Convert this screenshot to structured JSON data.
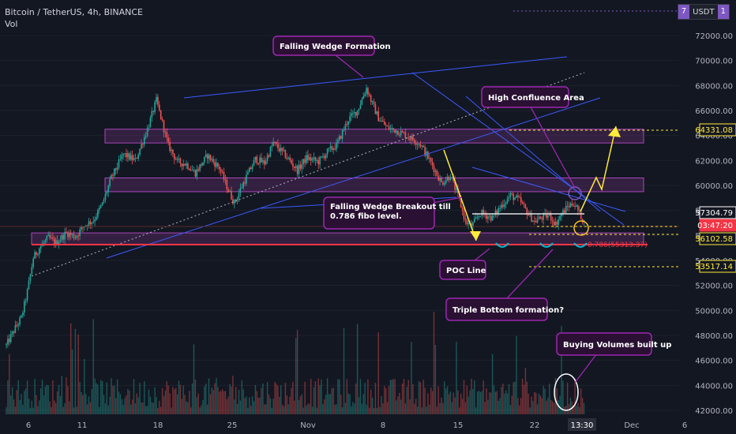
{
  "header": {
    "symbol_line": "Bitcoin / TetherUS, 4h, BINANCE",
    "volume_label": "Vol"
  },
  "currency_button": {
    "count_left": "7",
    "label": "USDT",
    "count_right": "1"
  },
  "chart_data": {
    "type": "candlestick",
    "y_axis": {
      "min": 42000,
      "max": 72000,
      "step": 2000,
      "tick_labels": [
        "72000.00",
        "70000.00",
        "68000.00",
        "66000.00",
        "64000.00",
        "62000.00",
        "60000.00",
        "58000.00",
        "56000.00",
        "54000.00",
        "52000.00",
        "50000.00",
        "48000.00",
        "46000.00",
        "44000.00",
        "42000.00"
      ]
    },
    "x_axis": {
      "tick_labels": [
        "6",
        "11",
        "18",
        "25",
        "Nov",
        "8",
        "15",
        "22",
        "13:30",
        "Dec",
        "6"
      ]
    },
    "price_path": [
      [
        0,
        47200
      ],
      [
        6,
        48600
      ],
      [
        10,
        49400
      ],
      [
        14,
        51500
      ],
      [
        18,
        54200
      ],
      [
        22,
        55000
      ],
      [
        28,
        55800
      ],
      [
        33,
        55400
      ],
      [
        40,
        56200
      ],
      [
        46,
        55900
      ],
      [
        52,
        56800
      ],
      [
        58,
        57200
      ],
      [
        64,
        58500
      ],
      [
        70,
        60600
      ],
      [
        78,
        62500
      ],
      [
        86,
        62000
      ],
      [
        94,
        64500
      ],
      [
        100,
        66800
      ],
      [
        104,
        65000
      ],
      [
        108,
        63200
      ],
      [
        114,
        61900
      ],
      [
        120,
        61700
      ],
      [
        126,
        61000
      ],
      [
        134,
        62400
      ],
      [
        142,
        61400
      ],
      [
        148,
        59600
      ],
      [
        152,
        58600
      ],
      [
        158,
        60200
      ],
      [
        166,
        62100
      ],
      [
        172,
        61800
      ],
      [
        178,
        63400
      ],
      [
        186,
        62400
      ],
      [
        194,
        61200
      ],
      [
        200,
        62200
      ],
      [
        208,
        61900
      ],
      [
        214,
        62700
      ],
      [
        220,
        63200
      ],
      [
        228,
        65300
      ],
      [
        234,
        66000
      ],
      [
        240,
        67800
      ],
      [
        244,
        66500
      ],
      [
        248,
        65400
      ],
      [
        254,
        64600
      ],
      [
        260,
        64400
      ],
      [
        268,
        63900
      ],
      [
        276,
        63300
      ],
      [
        284,
        61600
      ],
      [
        290,
        60200
      ],
      [
        296,
        60800
      ],
      [
        302,
        58800
      ],
      [
        306,
        57100
      ],
      [
        310,
        56700
      ],
      [
        316,
        57800
      ],
      [
        324,
        57400
      ],
      [
        330,
        58400
      ],
      [
        336,
        59200
      ],
      [
        342,
        58800
      ],
      [
        348,
        57700
      ],
      [
        352,
        57100
      ],
      [
        356,
        57400
      ],
      [
        362,
        57600
      ],
      [
        366,
        56900
      ],
      [
        370,
        57700
      ],
      [
        374,
        58300
      ],
      [
        378,
        58600
      ],
      [
        382,
        57800
      ],
      [
        385,
        57050
      ]
    ],
    "volume": {
      "axis_hidden": true,
      "spike_positions": "irregular",
      "title": ""
    },
    "price_labels": [
      {
        "value": "64331.08",
        "style": "yellow-dashed"
      },
      {
        "value": "57304.79",
        "style": "white-solid"
      },
      {
        "value": "03:47:20",
        "style": "red-countdown"
      },
      {
        "value": "56102.58",
        "style": "yellow-dashed"
      },
      {
        "value": "53517.14",
        "style": "yellow-dashed"
      }
    ],
    "fib_label": "0.786(55313.37)",
    "annotations": [
      {
        "id": "falling-wedge-formation",
        "text": "Falling Wedge Formation"
      },
      {
        "id": "high-confluence-area",
        "text": "High Confluence Area"
      },
      {
        "id": "falling-wedge-breakout",
        "text": "Falling Wedge Breakout till 0.786 fibo level."
      },
      {
        "id": "poc-line",
        "text": "POC Line"
      },
      {
        "id": "triple-bottom",
        "text": "Triple Bottom formation?"
      },
      {
        "id": "buying-volumes",
        "text": "Buying Volumes built up"
      }
    ],
    "colors": {
      "up": "#26a69a",
      "down": "#ef5350",
      "background": "#131722",
      "trendline": "#3d5afe",
      "zone": "#5b2d66",
      "annotation_border": "#9c27b0",
      "annotation_fill": "#2a1032",
      "projection": "#ffeb3b",
      "poc": "#f23645"
    }
  }
}
